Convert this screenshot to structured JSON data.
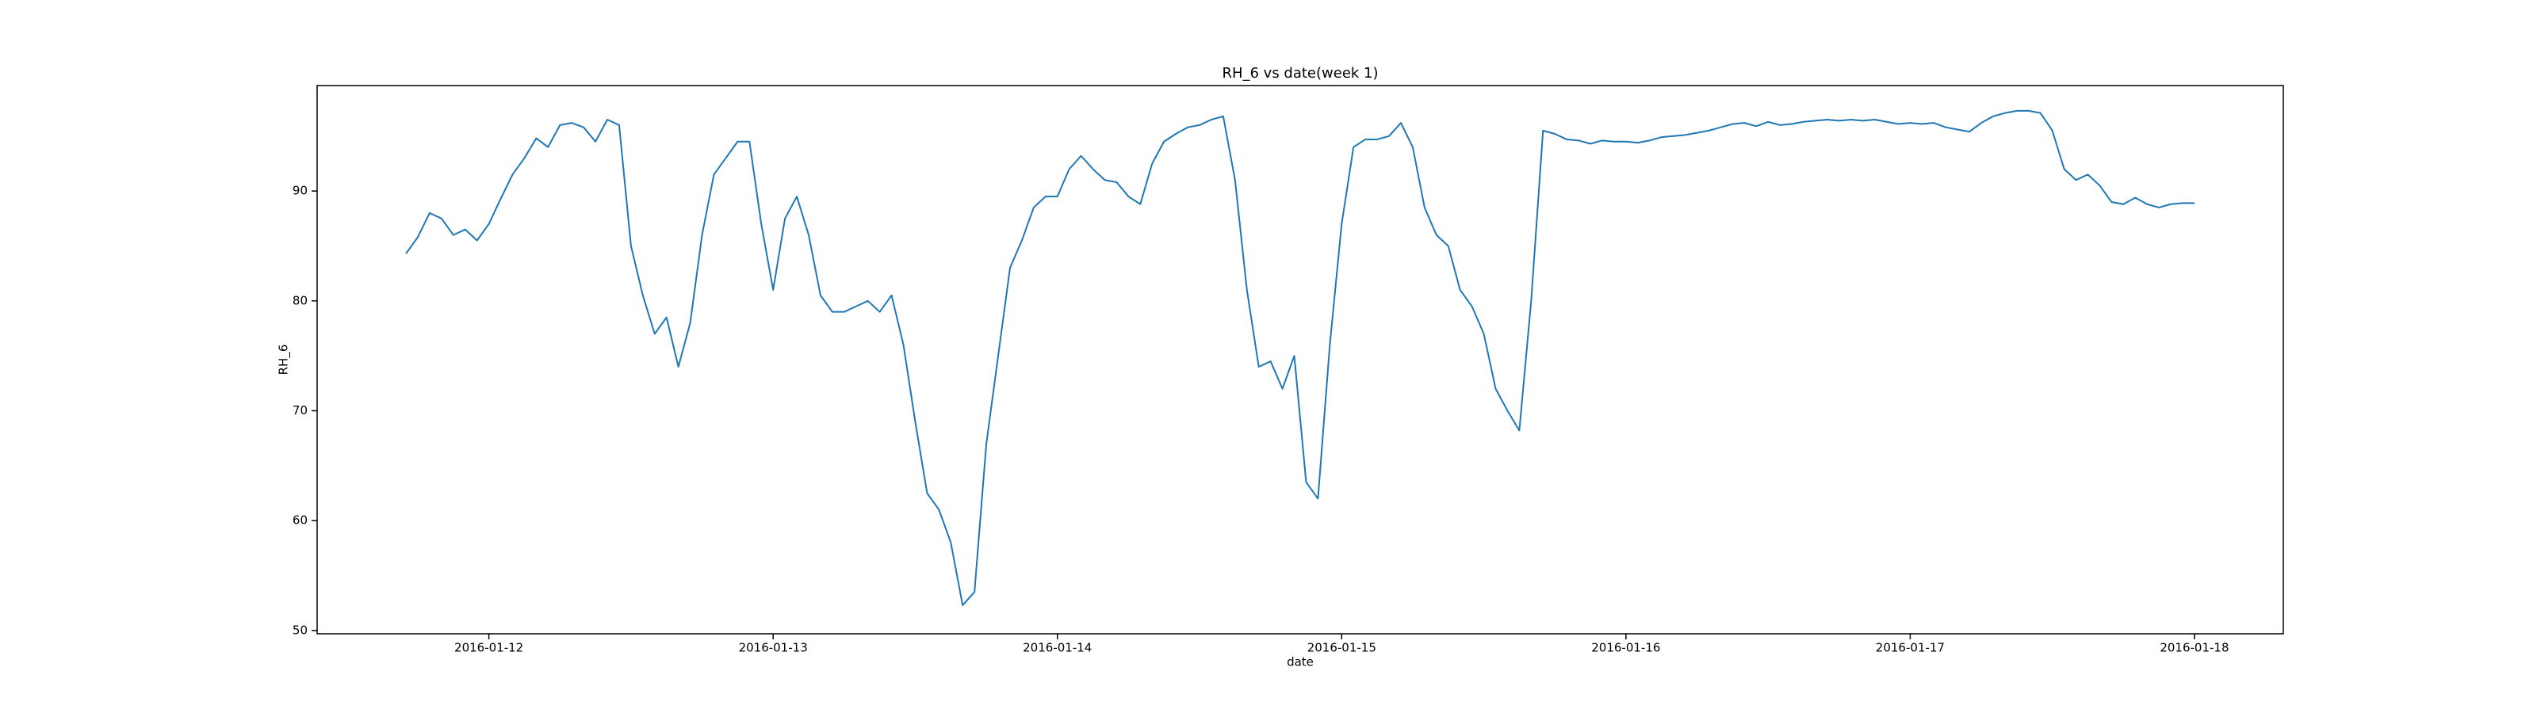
{
  "chart_data": {
    "type": "line",
    "title": "RH_6 vs date(week 1)",
    "x_label": "date",
    "y_label": "RH_6",
    "x": [
      "2016-01-11 17:00",
      "2016-01-11 18:00",
      "2016-01-11 19:00",
      "2016-01-11 20:00",
      "2016-01-11 21:00",
      "2016-01-11 22:00",
      "2016-01-11 23:00",
      "2016-01-12 00:00",
      "2016-01-12 01:00",
      "2016-01-12 02:00",
      "2016-01-12 03:00",
      "2016-01-12 04:00",
      "2016-01-12 05:00",
      "2016-01-12 06:00",
      "2016-01-12 07:00",
      "2016-01-12 08:00",
      "2016-01-12 09:00",
      "2016-01-12 10:00",
      "2016-01-12 11:00",
      "2016-01-12 12:00",
      "2016-01-12 13:00",
      "2016-01-12 14:00",
      "2016-01-12 15:00",
      "2016-01-12 16:00",
      "2016-01-12 17:00",
      "2016-01-12 18:00",
      "2016-01-12 19:00",
      "2016-01-12 20:00",
      "2016-01-12 21:00",
      "2016-01-12 22:00",
      "2016-01-12 23:00",
      "2016-01-13 00:00",
      "2016-01-13 01:00",
      "2016-01-13 02:00",
      "2016-01-13 03:00",
      "2016-01-13 04:00",
      "2016-01-13 05:00",
      "2016-01-13 06:00",
      "2016-01-13 07:00",
      "2016-01-13 08:00",
      "2016-01-13 09:00",
      "2016-01-13 10:00",
      "2016-01-13 11:00",
      "2016-01-13 12:00",
      "2016-01-13 13:00",
      "2016-01-13 14:00",
      "2016-01-13 15:00",
      "2016-01-13 16:00",
      "2016-01-13 17:00",
      "2016-01-13 18:00",
      "2016-01-13 19:00",
      "2016-01-13 20:00",
      "2016-01-13 21:00",
      "2016-01-13 22:00",
      "2016-01-13 23:00",
      "2016-01-14 00:00",
      "2016-01-14 01:00",
      "2016-01-14 02:00",
      "2016-01-14 03:00",
      "2016-01-14 04:00",
      "2016-01-14 05:00",
      "2016-01-14 06:00",
      "2016-01-14 07:00",
      "2016-01-14 08:00",
      "2016-01-14 09:00",
      "2016-01-14 10:00",
      "2016-01-14 11:00",
      "2016-01-14 12:00",
      "2016-01-14 13:00",
      "2016-01-14 14:00",
      "2016-01-14 15:00",
      "2016-01-14 16:00",
      "2016-01-14 17:00",
      "2016-01-14 18:00",
      "2016-01-14 19:00",
      "2016-01-14 20:00",
      "2016-01-14 21:00",
      "2016-01-14 22:00",
      "2016-01-14 23:00",
      "2016-01-15 00:00",
      "2016-01-15 01:00",
      "2016-01-15 02:00",
      "2016-01-15 03:00",
      "2016-01-15 04:00",
      "2016-01-15 05:00",
      "2016-01-15 06:00",
      "2016-01-15 07:00",
      "2016-01-15 08:00",
      "2016-01-15 09:00",
      "2016-01-15 10:00",
      "2016-01-15 11:00",
      "2016-01-15 12:00",
      "2016-01-15 13:00",
      "2016-01-15 14:00",
      "2016-01-15 15:00",
      "2016-01-15 16:00",
      "2016-01-15 17:00",
      "2016-01-15 18:00",
      "2016-01-15 19:00",
      "2016-01-15 20:00",
      "2016-01-15 21:00",
      "2016-01-15 22:00",
      "2016-01-15 23:00",
      "2016-01-16 00:00",
      "2016-01-16 01:00",
      "2016-01-16 02:00",
      "2016-01-16 03:00",
      "2016-01-16 04:00",
      "2016-01-16 05:00",
      "2016-01-16 06:00",
      "2016-01-16 07:00",
      "2016-01-16 08:00",
      "2016-01-16 09:00",
      "2016-01-16 10:00",
      "2016-01-16 11:00",
      "2016-01-16 12:00",
      "2016-01-16 13:00",
      "2016-01-16 14:00",
      "2016-01-16 15:00",
      "2016-01-16 16:00",
      "2016-01-16 17:00",
      "2016-01-16 18:00",
      "2016-01-16 19:00",
      "2016-01-16 20:00",
      "2016-01-16 21:00",
      "2016-01-16 22:00",
      "2016-01-16 23:00",
      "2016-01-17 00:00",
      "2016-01-17 01:00",
      "2016-01-17 02:00",
      "2016-01-17 03:00",
      "2016-01-17 04:00",
      "2016-01-17 05:00",
      "2016-01-17 06:00",
      "2016-01-17 07:00",
      "2016-01-17 08:00",
      "2016-01-17 09:00",
      "2016-01-17 10:00",
      "2016-01-17 11:00",
      "2016-01-17 12:00",
      "2016-01-17 13:00",
      "2016-01-17 14:00",
      "2016-01-17 15:00",
      "2016-01-17 16:00",
      "2016-01-17 17:00",
      "2016-01-17 18:00",
      "2016-01-17 19:00",
      "2016-01-17 20:00",
      "2016-01-17 21:00",
      "2016-01-17 22:00",
      "2016-01-17 23:00",
      "2016-01-18 00:00"
    ],
    "series": [
      {
        "color": "#1f77b4",
        "values": [
          84.3,
          85.8,
          88.0,
          87.5,
          86.0,
          86.5,
          85.5,
          87.0,
          89.3,
          91.5,
          93.0,
          94.8,
          94.0,
          96.0,
          96.2,
          95.8,
          94.5,
          96.5,
          96.0,
          85.0,
          80.5,
          77.0,
          78.5,
          74.0,
          78.0,
          86.0,
          91.5,
          93.0,
          94.5,
          94.5,
          87.0,
          81.0,
          87.5,
          89.5,
          86.0,
          80.5,
          79.0,
          79.0,
          79.5,
          80.0,
          79.0,
          80.5,
          76.0,
          69.0,
          62.5,
          61.0,
          58.0,
          52.3,
          53.5,
          67.0,
          75.0,
          83.0,
          85.5,
          88.5,
          89.5,
          89.5,
          92.0,
          93.2,
          92.0,
          91.0,
          90.8,
          89.5,
          88.8,
          92.5,
          94.5,
          95.2,
          95.8,
          96.0,
          96.5,
          96.8,
          91.0,
          81.0,
          74.0,
          74.5,
          72.0,
          75.0,
          63.5,
          62.0,
          76.0,
          87.0,
          94.0,
          94.7,
          94.7,
          95.0,
          96.2,
          94.0,
          88.5,
          86.0,
          85.0,
          81.0,
          79.5,
          77.0,
          72.0,
          70.0,
          68.2,
          80.0,
          95.5,
          95.2,
          94.7,
          94.6,
          94.3,
          94.6,
          94.5,
          94.5,
          94.4,
          94.6,
          94.9,
          95.0,
          95.1,
          95.3,
          95.5,
          95.8,
          96.1,
          96.2,
          95.9,
          96.3,
          96.0,
          96.1,
          96.3,
          96.4,
          96.5,
          96.4,
          96.5,
          96.4,
          96.5,
          96.3,
          96.1,
          96.2,
          96.1,
          96.2,
          95.8,
          95.6,
          95.4,
          96.2,
          96.8,
          97.1,
          97.3,
          97.3,
          97.1,
          95.5,
          92.0,
          91.0,
          91.5,
          90.5,
          89.0,
          88.8,
          89.4,
          88.8,
          88.5,
          88.8,
          88.9,
          88.9
        ]
      }
    ],
    "xlim": [
      "2016-01-11 09:30",
      "2016-01-18 07:30"
    ],
    "xticks": [
      "2016-01-12",
      "2016-01-13",
      "2016-01-14",
      "2016-01-15",
      "2016-01-16",
      "2016-01-17",
      "2016-01-18"
    ],
    "ylim": [
      49.7,
      99.6
    ],
    "yticks": [
      50,
      60,
      70,
      80,
      90
    ],
    "grid": false
  }
}
